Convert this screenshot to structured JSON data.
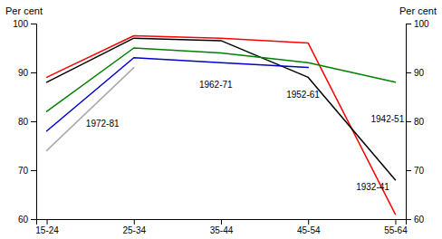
{
  "chart_data": {
    "type": "line",
    "categories": [
      "15-24",
      "25-34",
      "35-44",
      "45-54",
      "55-64"
    ],
    "series": [
      {
        "name": "1932-41",
        "color": "#ff0000",
        "values": [
          89,
          97.5,
          97,
          96,
          61
        ]
      },
      {
        "name": "1942-51",
        "color": "#000000",
        "values": [
          88,
          97,
          96.5,
          89,
          68
        ]
      },
      {
        "name": "1952-61",
        "color": "#008000",
        "values": [
          82,
          95,
          94,
          92,
          88
        ]
      },
      {
        "name": "1962-71",
        "color": "#0000cc",
        "values": [
          78,
          93,
          92,
          91,
          null
        ]
      },
      {
        "name": "1972-81",
        "color": "#aaaaaa",
        "values": [
          74,
          91,
          null,
          null,
          null
        ]
      }
    ],
    "y_label": "Per cent",
    "y2_label": "Per cent",
    "ylim": [
      60,
      100
    ],
    "yticks": [
      60,
      70,
      80,
      90,
      100
    ],
    "y2lim": [
      60,
      100
    ],
    "y2ticks": [
      60,
      70,
      80,
      90,
      100
    ],
    "grid": false
  }
}
